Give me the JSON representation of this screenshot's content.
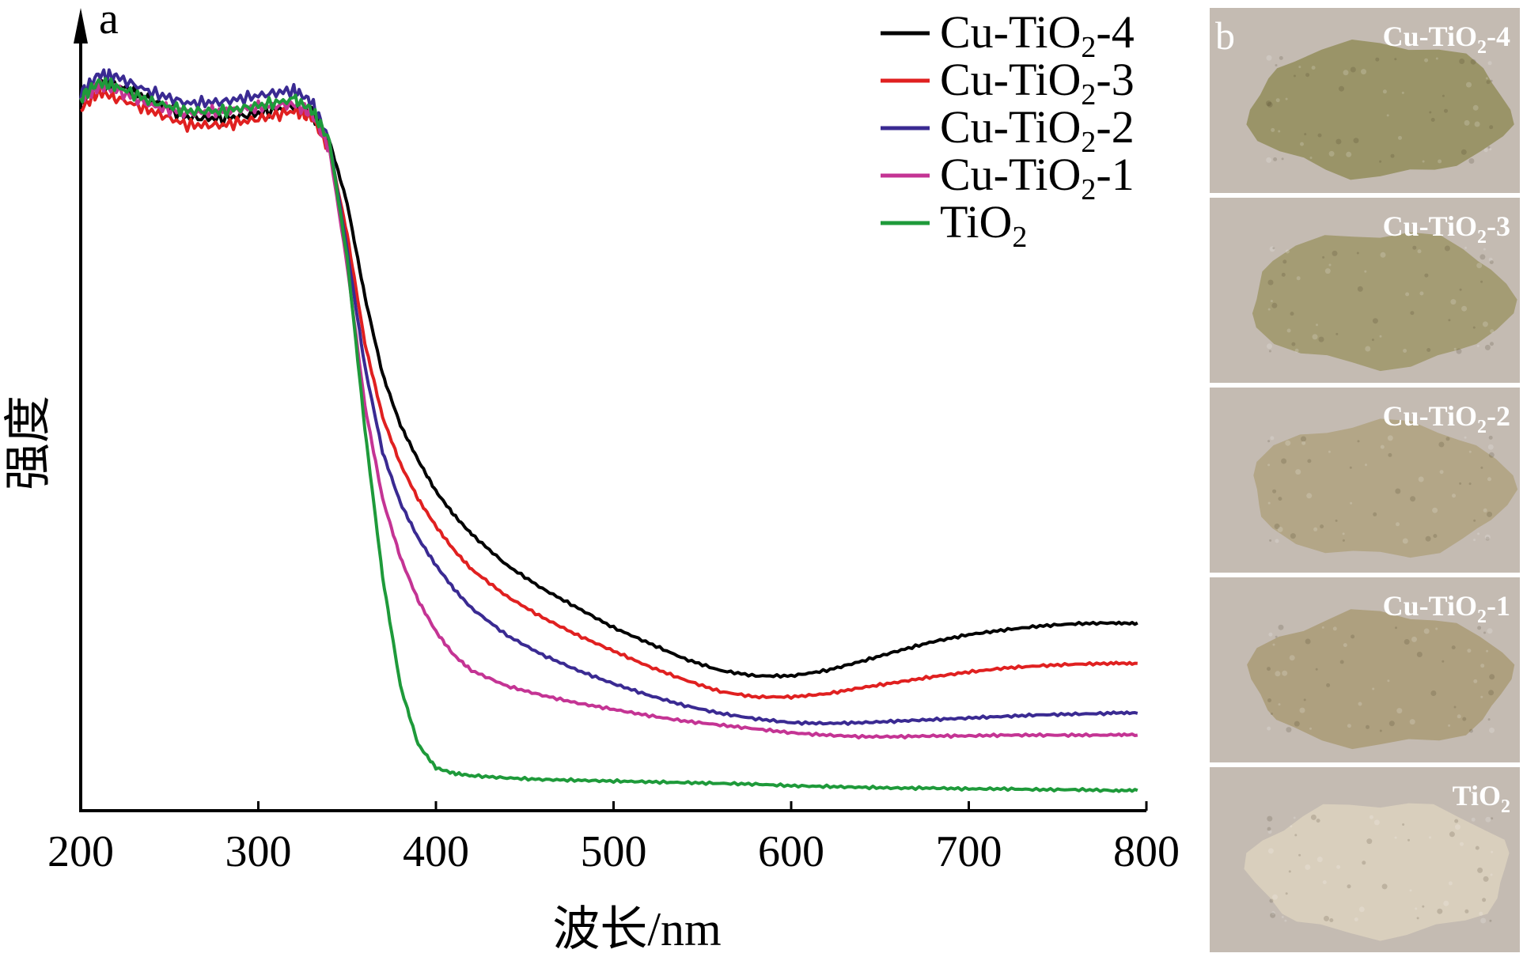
{
  "panel_a": {
    "letter": "a"
  },
  "panel_b": {
    "letter": "b",
    "photos": [
      {
        "label": "Cu-TiO2-4",
        "base": "Cu-TiO",
        "sub": "2",
        "suffix": "-4",
        "color": "#9a9468"
      },
      {
        "label": "Cu-TiO2-3",
        "base": "Cu-TiO",
        "sub": "2",
        "suffix": "-3",
        "color": "#a49c74"
      },
      {
        "label": "Cu-TiO2-2",
        "base": "Cu-TiO",
        "sub": "2",
        "suffix": "-2",
        "color": "#b3a687"
      },
      {
        "label": "Cu-TiO2-1",
        "base": "Cu-TiO",
        "sub": "2",
        "suffix": "-1",
        "color": "#aea07f"
      },
      {
        "label": "TiO2",
        "base": "TiO",
        "sub": "2",
        "suffix": "",
        "color": "#d9cfbd"
      }
    ],
    "background_color": "#c4bbb2"
  },
  "chart_data": {
    "type": "line",
    "title": "",
    "xlabel": "波长/nm",
    "ylabel": "强度",
    "xlim": [
      200,
      800
    ],
    "ylim": [
      0,
      100
    ],
    "xticks": [
      200,
      300,
      400,
      500,
      600,
      700,
      800
    ],
    "y_tick_labels_shown": false,
    "grid": false,
    "legend_position": "top-right",
    "x": [
      200,
      210,
      220,
      240,
      260,
      280,
      300,
      320,
      330,
      340,
      350,
      360,
      370,
      380,
      390,
      400,
      410,
      420,
      440,
      460,
      480,
      500,
      520,
      540,
      560,
      580,
      600,
      620,
      640,
      660,
      680,
      700,
      720,
      740,
      760,
      780,
      795
    ],
    "series": [
      {
        "name": "Cu-TiO2-4",
        "base": "Cu-TiO",
        "sub": "2",
        "suffix": "-4",
        "color": "#000000",
        "values": [
          91.0,
          93.0,
          93.2,
          91.2,
          89.0,
          88.8,
          89.5,
          90.5,
          89.5,
          86.0,
          78.0,
          66.0,
          56.0,
          49.5,
          45.0,
          41.0,
          38.0,
          35.5,
          31.5,
          28.5,
          26.0,
          23.5,
          21.5,
          19.5,
          18.0,
          17.3,
          17.3,
          18.0,
          19.2,
          20.5,
          21.7,
          22.6,
          23.2,
          23.7,
          24.0,
          24.1,
          24.1
        ]
      },
      {
        "name": "Cu-TiO2-3",
        "base": "Cu-TiO",
        "sub": "2",
        "suffix": "-3",
        "color": "#e02020",
        "values": [
          90.0,
          92.3,
          91.5,
          89.8,
          88.0,
          88.0,
          88.8,
          89.8,
          89.0,
          85.0,
          74.0,
          60.0,
          50.5,
          44.5,
          40.0,
          36.5,
          33.5,
          31.0,
          27.5,
          24.8,
          22.5,
          20.5,
          18.5,
          16.8,
          15.3,
          14.6,
          14.6,
          15.0,
          15.8,
          16.5,
          17.2,
          17.8,
          18.3,
          18.6,
          18.8,
          18.9,
          18.9
        ]
      },
      {
        "name": "Cu-TiO2-2",
        "base": "Cu-TiO",
        "sub": "2",
        "suffix": "-2",
        "color": "#3a2a92",
        "values": [
          92.0,
          94.5,
          94.2,
          92.2,
          90.8,
          91.0,
          91.8,
          92.5,
          91.0,
          86.0,
          72.0,
          57.0,
          46.0,
          39.5,
          35.0,
          31.5,
          28.5,
          26.0,
          22.5,
          20.0,
          18.0,
          16.3,
          14.8,
          13.5,
          12.5,
          11.8,
          11.3,
          11.2,
          11.3,
          11.5,
          11.7,
          11.9,
          12.1,
          12.3,
          12.4,
          12.5,
          12.5
        ]
      },
      {
        "name": "Cu-TiO2-1",
        "base": "Cu-TiO",
        "sub": "2",
        "suffix": "-1",
        "color": "#c43494",
        "values": [
          91.0,
          93.0,
          92.5,
          90.5,
          89.5,
          89.8,
          90.3,
          90.7,
          89.5,
          85.0,
          70.0,
          52.0,
          40.0,
          32.5,
          27.0,
          23.0,
          20.0,
          18.0,
          16.0,
          14.8,
          13.8,
          13.0,
          12.2,
          11.5,
          11.0,
          10.5,
          10.0,
          9.7,
          9.5,
          9.5,
          9.6,
          9.6,
          9.7,
          9.7,
          9.7,
          9.7,
          9.7
        ]
      },
      {
        "name": "TiO2",
        "base": "TiO",
        "sub": "2",
        "suffix": "",
        "color": "#1e9a3a",
        "values": [
          91.5,
          93.5,
          93.0,
          91.0,
          89.8,
          89.8,
          90.5,
          91.3,
          90.0,
          86.0,
          71.0,
          49.0,
          30.0,
          16.0,
          8.5,
          5.5,
          4.8,
          4.5,
          4.2,
          4.0,
          3.9,
          3.8,
          3.7,
          3.6,
          3.5,
          3.4,
          3.2,
          3.1,
          3.0,
          2.9,
          2.9,
          2.8,
          2.8,
          2.7,
          2.7,
          2.6,
          2.6
        ]
      }
    ]
  }
}
